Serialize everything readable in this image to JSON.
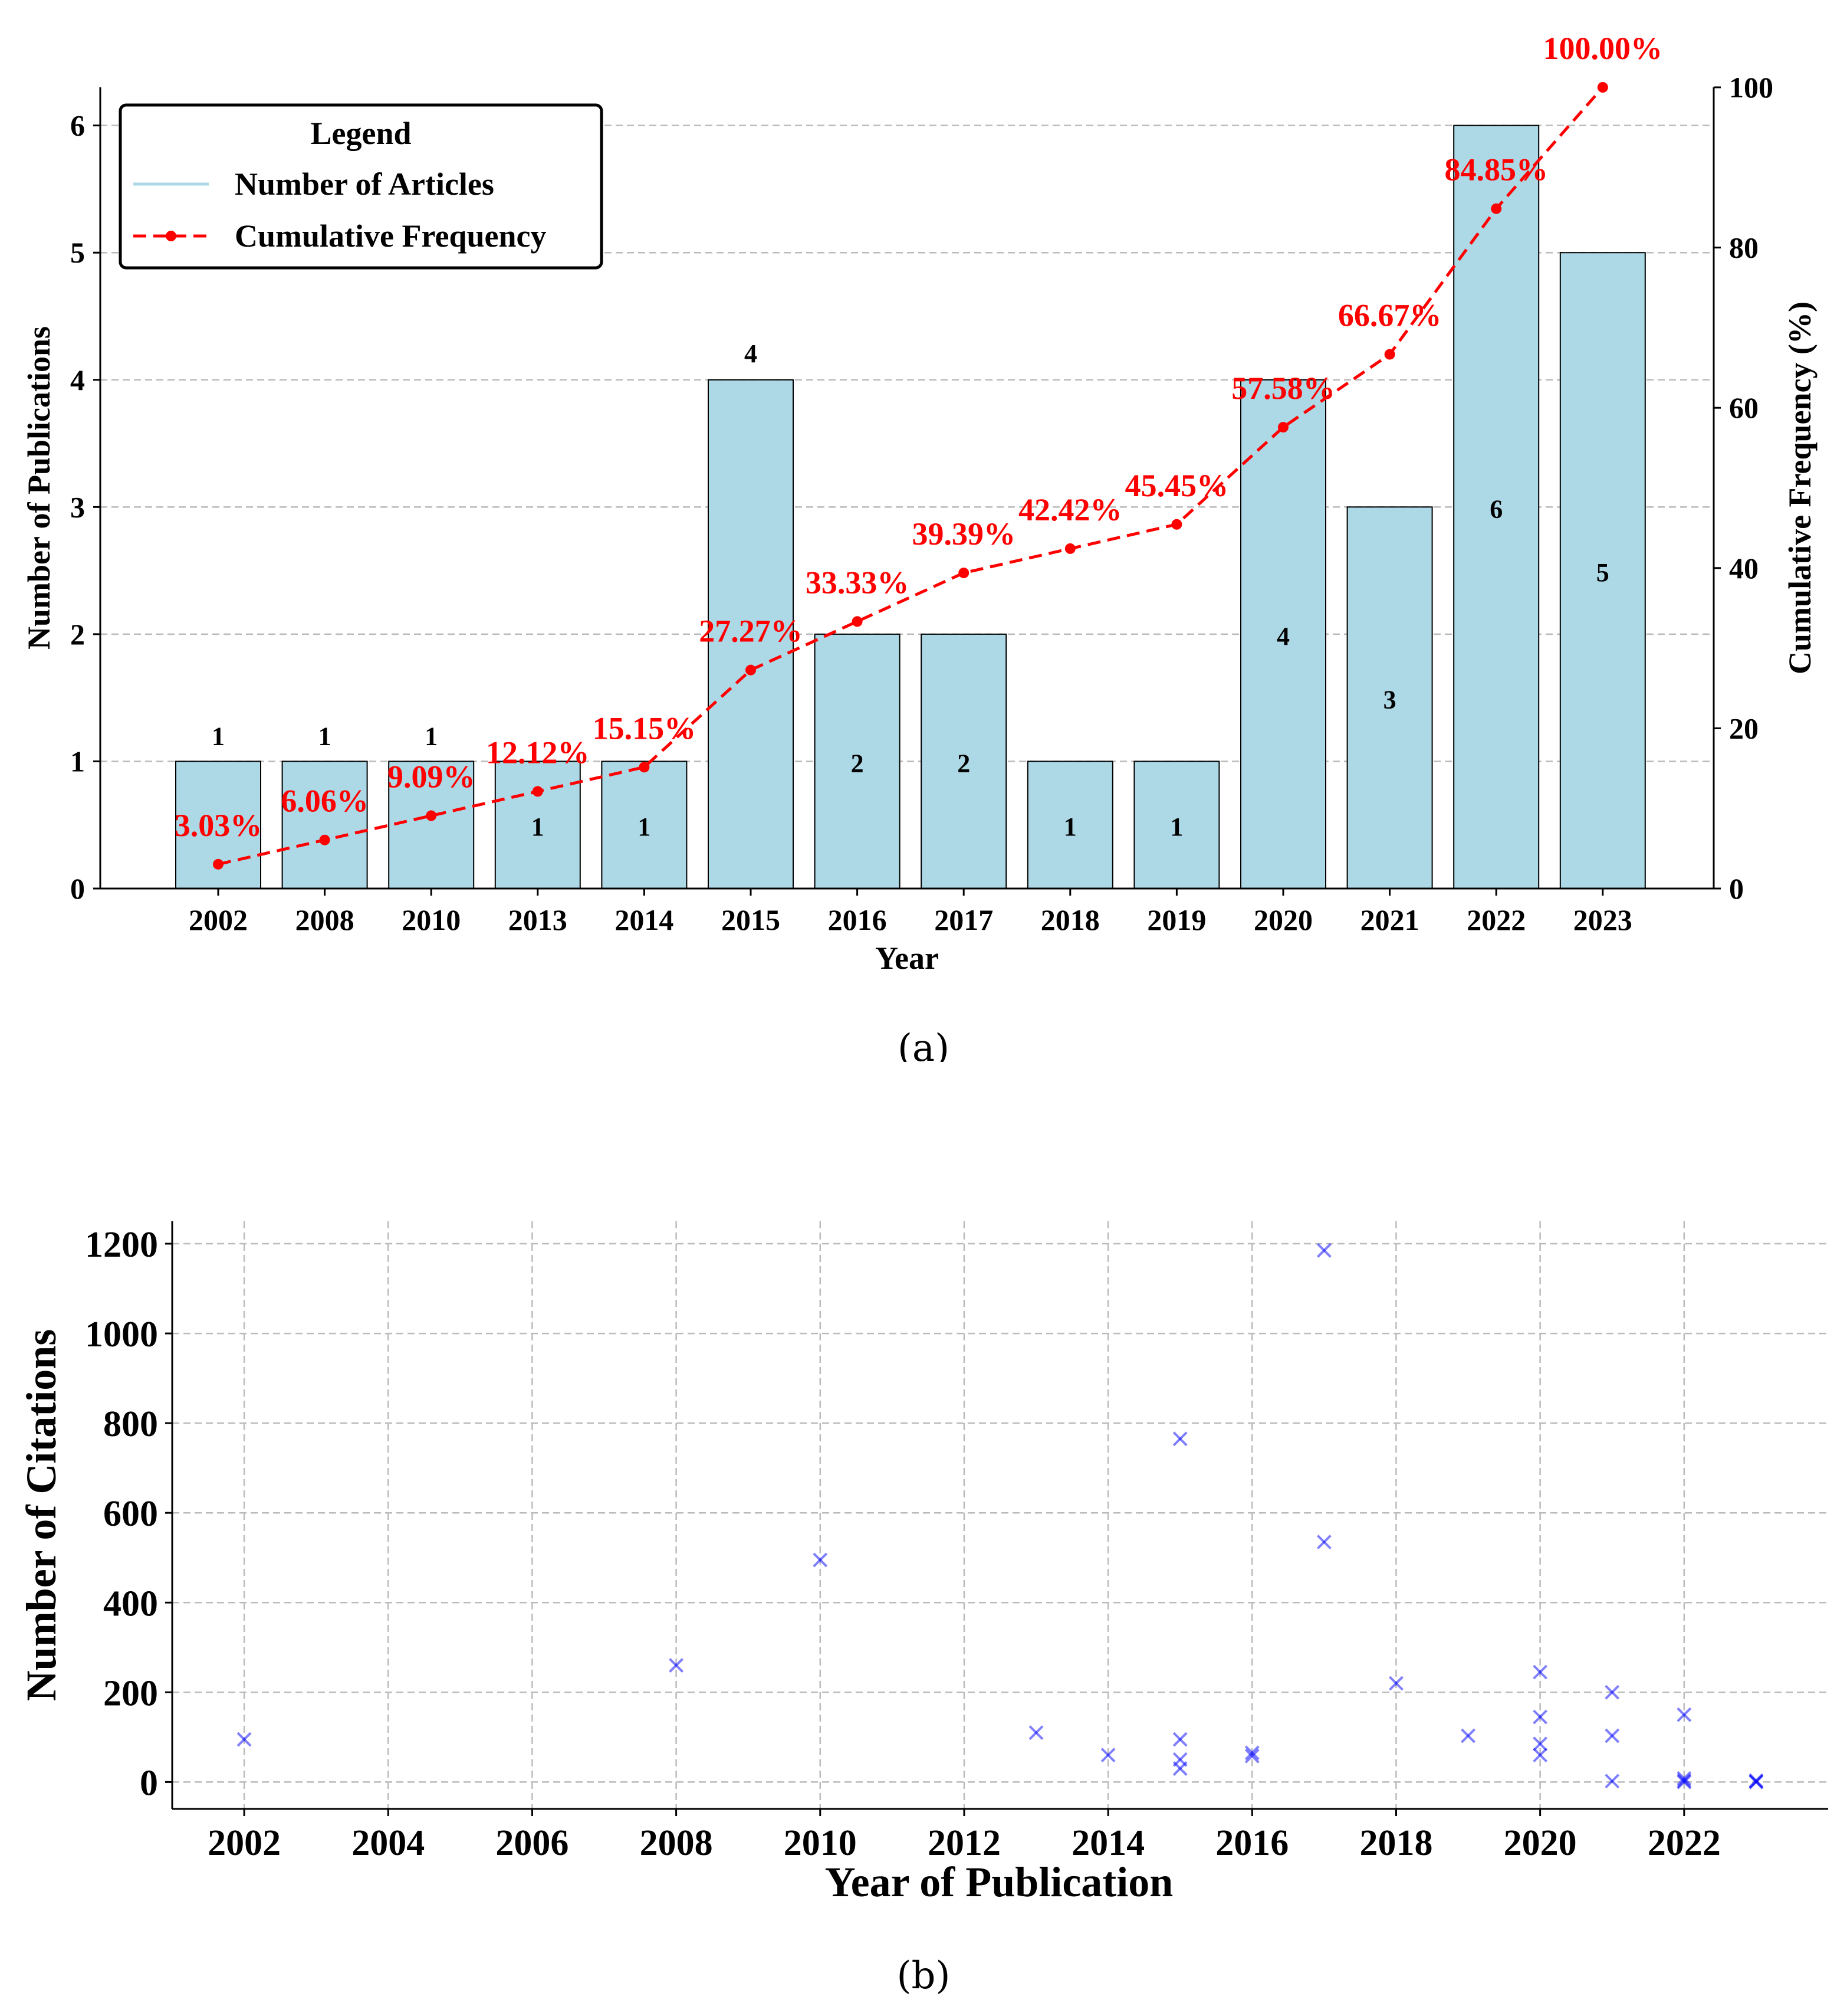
{
  "colors": {
    "bar_fill": "#add8e6",
    "bar_edge": "#000000",
    "line": "#ff0000",
    "scatter": "#0000ff",
    "grid": "#bbbbbb"
  },
  "chart_data": [
    {
      "type": "bar",
      "caption": "(a)",
      "xlabel": "Year",
      "ylabel": "Number of Publications",
      "y2label": "Cumulative Frequency (%)",
      "categories": [
        "2002",
        "2008",
        "2010",
        "2013",
        "2014",
        "2015",
        "2016",
        "2017",
        "2018",
        "2019",
        "2020",
        "2021",
        "2022",
        "2023"
      ],
      "series": [
        {
          "name": "Number of Articles",
          "type": "bar",
          "axis": "left",
          "values": [
            1,
            1,
            1,
            1,
            1,
            4,
            2,
            2,
            1,
            1,
            4,
            3,
            6,
            5
          ]
        },
        {
          "name": "Cumulative Frequency",
          "type": "line",
          "axis": "right",
          "values": [
            3.03,
            6.06,
            9.09,
            12.12,
            15.15,
            27.27,
            33.33,
            39.39,
            42.42,
            45.45,
            57.58,
            66.67,
            84.85,
            100.0
          ]
        }
      ],
      "bar_labels": [
        "1",
        "1",
        "1",
        "1",
        "1",
        "4",
        "2",
        "2",
        "1",
        "1",
        "4",
        "3",
        "6",
        "5"
      ],
      "pct_labels": [
        "3.03%",
        "6.06%",
        "9.09%",
        "12.12%",
        "15.15%",
        "27.27%",
        "33.33%",
        "39.39%",
        "42.42%",
        "45.45%",
        "57.58%",
        "66.67%",
        "84.85%",
        "100.00%"
      ],
      "ylim": [
        0,
        6.3
      ],
      "y2lim": [
        0,
        100
      ],
      "yticks": [
        "0",
        "1",
        "2",
        "3",
        "4",
        "5",
        "6"
      ],
      "y2ticks": [
        "0",
        "20",
        "40",
        "60",
        "80",
        "100"
      ],
      "legend": {
        "title": "Legend",
        "entries": [
          "Number of Articles",
          "Cumulative Frequency"
        ],
        "position": "top-left"
      },
      "grid": "horizontal dashed"
    },
    {
      "type": "scatter",
      "caption": "(b)",
      "xlabel": "Year of Publication",
      "ylabel": "Number of Citations",
      "xlim": [
        2001,
        2024
      ],
      "ylim": [
        -60,
        1250
      ],
      "xticks": [
        "2002",
        "2004",
        "2006",
        "2008",
        "2010",
        "2012",
        "2014",
        "2016",
        "2018",
        "2020",
        "2022"
      ],
      "yticks": [
        "0",
        "200",
        "400",
        "600",
        "800",
        "1000",
        "1200"
      ],
      "marker": "x",
      "points": [
        [
          2002,
          95
        ],
        [
          2008,
          260
        ],
        [
          2010,
          495
        ],
        [
          2013,
          110
        ],
        [
          2014,
          60
        ],
        [
          2015,
          765
        ],
        [
          2015,
          95
        ],
        [
          2015,
          50
        ],
        [
          2015,
          30
        ],
        [
          2016,
          65
        ],
        [
          2016,
          58
        ],
        [
          2017,
          1185
        ],
        [
          2017,
          535
        ],
        [
          2018,
          220
        ],
        [
          2019,
          103
        ],
        [
          2020,
          245
        ],
        [
          2020,
          145
        ],
        [
          2020,
          85
        ],
        [
          2020,
          60
        ],
        [
          2021,
          200
        ],
        [
          2021,
          103
        ],
        [
          2021,
          2
        ],
        [
          2022,
          150
        ],
        [
          2022,
          8
        ],
        [
          2022,
          3
        ],
        [
          2022,
          0
        ],
        [
          2023,
          3
        ],
        [
          2023,
          1
        ],
        [
          2023,
          0
        ]
      ],
      "grid": "dashed both"
    }
  ]
}
